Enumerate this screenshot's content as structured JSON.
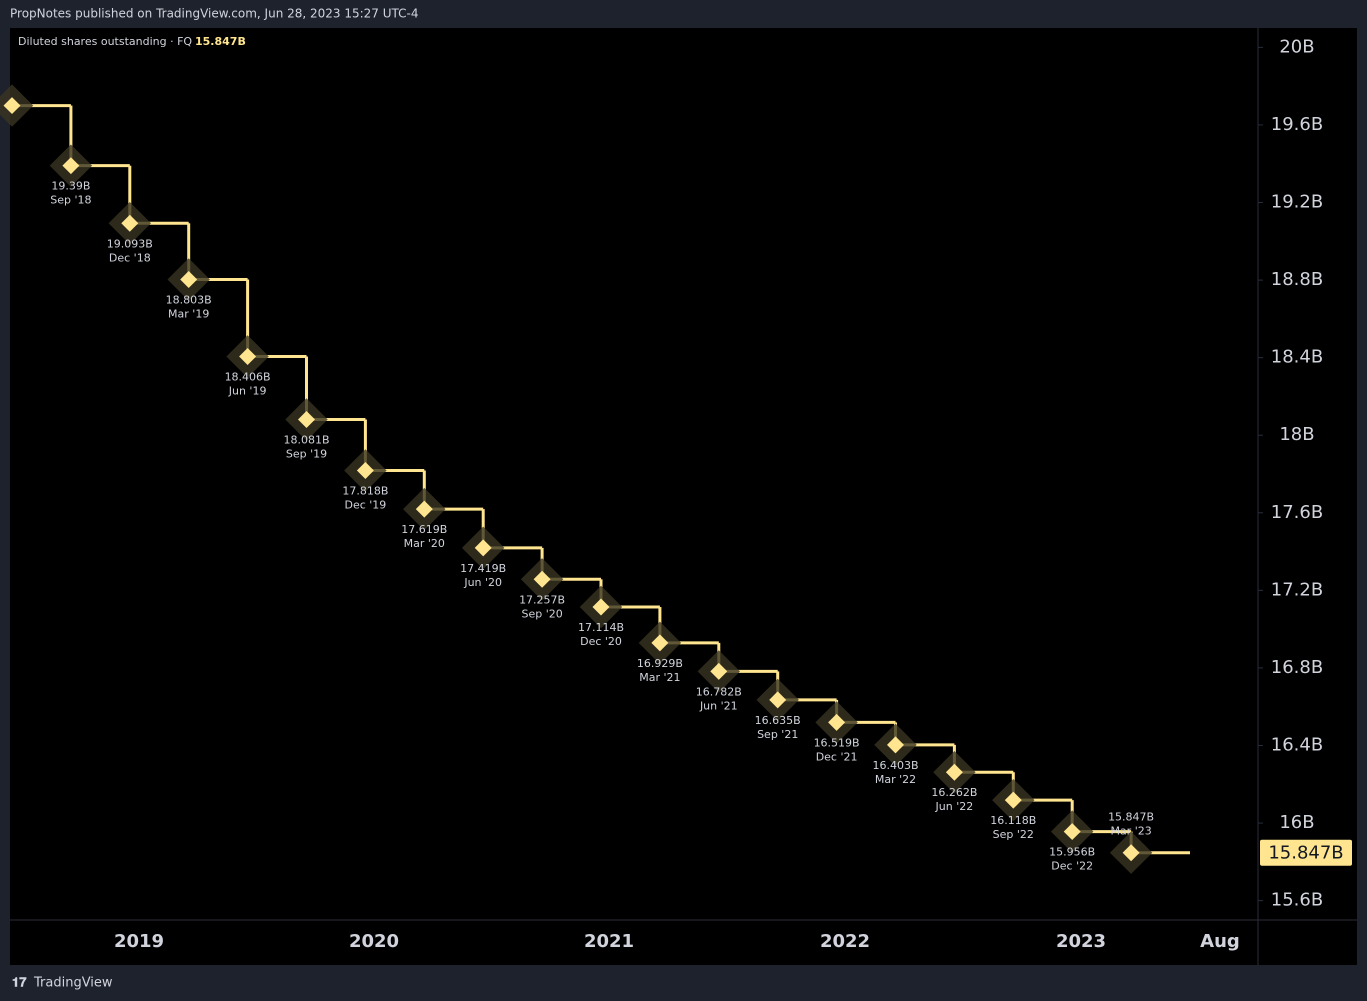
{
  "published": "PropNotes published on TradingView.com, Jun 28, 2023 15:27 UTC-4",
  "brand": "TradingView",
  "chart_data": {
    "type": "step",
    "title": "Diluted shares outstanding · FQ",
    "color": "#ffe58f",
    "categories": [
      null,
      "Sep '18",
      "Dec '18",
      "Mar '19",
      "Jun '19",
      "Sep '19",
      "Dec '19",
      "Mar '20",
      "Jun '20",
      "Sep '20",
      "Dec '20",
      "Mar '21",
      "Jun '21",
      "Sep '21",
      "Dec '21",
      "Mar '22",
      "Jun '22",
      "Sep '22",
      "Dec '22",
      "Mar '23"
    ],
    "values": [
      19.7,
      19.39,
      19.093,
      18.803,
      18.406,
      18.081,
      17.818,
      17.619,
      17.419,
      17.257,
      17.114,
      16.929,
      16.782,
      16.635,
      16.519,
      16.403,
      16.262,
      16.118,
      15.956,
      15.847
    ],
    "value_labels": [
      null,
      "19.39B",
      "19.093B",
      "18.803B",
      "18.406B",
      "18.081B",
      "17.818B",
      "17.619B",
      "17.419B",
      "17.257B",
      "17.114B",
      "16.929B",
      "16.782B",
      "16.635B",
      "16.519B",
      "16.403B",
      "16.262B",
      "16.118B",
      "15.956B",
      "15.847B"
    ],
    "ylim": [
      15.5,
      20.1
    ],
    "yticks": [
      {
        "value": 20,
        "label": "20B"
      },
      {
        "value": 19.6,
        "label": "19.6B"
      },
      {
        "value": 19.2,
        "label": "19.2B"
      },
      {
        "value": 18.8,
        "label": "18.8B"
      },
      {
        "value": 18.4,
        "label": "18.4B"
      },
      {
        "value": 18,
        "label": "18B"
      },
      {
        "value": 17.6,
        "label": "17.6B"
      },
      {
        "value": 17.2,
        "label": "17.2B"
      },
      {
        "value": 16.8,
        "label": "16.8B"
      },
      {
        "value": 16.4,
        "label": "16.4B"
      },
      {
        "value": 16,
        "label": "16B"
      },
      {
        "value": 15.6,
        "label": "15.6B"
      }
    ],
    "xticks": [
      "2019",
      "2020",
      "2021",
      "2022",
      "2023",
      "Aug"
    ],
    "grid": false
  }
}
